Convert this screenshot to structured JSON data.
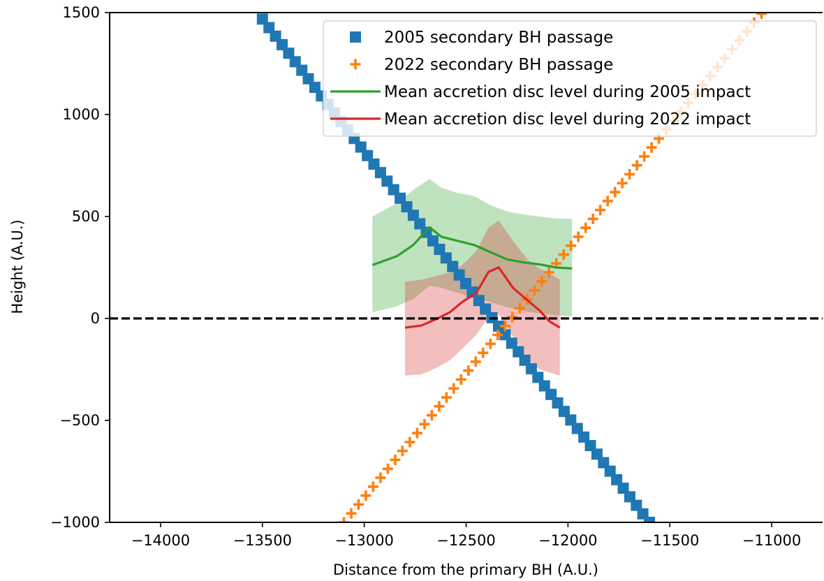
{
  "chart_data": {
    "type": "scatter",
    "title": "",
    "xlabel": "Distance from the primary BH (A.U.)",
    "ylabel": "Height (A.U.)",
    "xlim": [
      -14250,
      -10750
    ],
    "ylim": [
      -1000,
      1500
    ],
    "xticks": [
      -14000,
      -13500,
      -13000,
      -12500,
      -12000,
      -11500,
      -11000
    ],
    "yticks": [
      -1000,
      -500,
      0,
      500,
      1000,
      1500
    ],
    "xtick_labels": [
      "−14000",
      "−13500",
      "−13000",
      "−12500",
      "−12000",
      "−11500",
      "−11000"
    ],
    "ytick_labels": [
      "−1000",
      "−500",
      "0",
      "500",
      "1000",
      "1500"
    ],
    "grid": false,
    "legend_position": "upper-right",
    "reference_line": {
      "y": 0,
      "style": "dashed",
      "color": "#000000"
    },
    "series": [
      {
        "name": "2005 secondary BH passage",
        "kind": "scatter",
        "marker": "square",
        "color": "#1f77b4",
        "line": {
          "x_start": -13500,
          "y_start": 1468,
          "x_end": -11600,
          "y_end": -1000
        },
        "n_points": 60
      },
      {
        "name": "2022 secondary BH passage",
        "kind": "scatter",
        "marker": "plus",
        "color": "#ff7f0e",
        "line": {
          "x_start": -13100,
          "y_start": -1000,
          "x_end": -11050,
          "y_end": 1495
        },
        "n_points": 58
      },
      {
        "name": "Mean accretion disc level during 2005 impact",
        "kind": "line",
        "color": "#2ca02c",
        "x": [
          -12960,
          -12840,
          -12760,
          -12680,
          -12620,
          -12540,
          -12460,
          -12380,
          -12300,
          -12220,
          -12140,
          -12060,
          -11980
        ],
        "y": [
          262,
          305,
          360,
          447,
          400,
          380,
          360,
          325,
          290,
          275,
          265,
          250,
          245
        ],
        "band_upper": [
          500,
          565,
          630,
          685,
          640,
          615,
          600,
          555,
          525,
          510,
          500,
          490,
          488
        ],
        "band_lower": [
          30,
          60,
          95,
          160,
          150,
          125,
          105,
          80,
          55,
          35,
          25,
          15,
          10
        ]
      },
      {
        "name": "Mean accretion disc level during 2022 impact",
        "kind": "line",
        "color": "#d62728",
        "x": [
          -12800,
          -12720,
          -12640,
          -12580,
          -12520,
          -12450,
          -12390,
          -12340,
          -12270,
          -12200,
          -12140,
          -12090,
          -12040
        ],
        "y": [
          -45,
          -35,
          0,
          30,
          80,
          125,
          228,
          250,
          150,
          90,
          40,
          -15,
          -45
        ],
        "band_upper": [
          180,
          190,
          210,
          225,
          260,
          330,
          445,
          480,
          380,
          290,
          245,
          220,
          190
        ],
        "band_lower": [
          -280,
          -275,
          -240,
          -205,
          -150,
          -80,
          5,
          20,
          -90,
          -200,
          -250,
          -265,
          -280
        ]
      }
    ]
  }
}
